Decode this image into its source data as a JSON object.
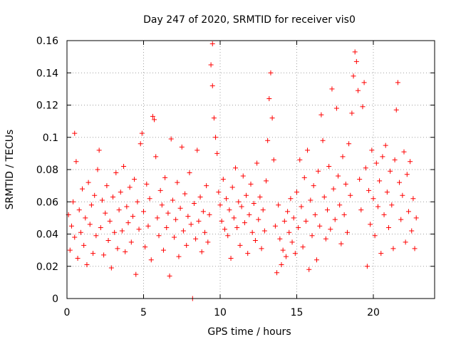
{
  "chart_data": {
    "type": "scatter",
    "title": "Day 247 of 2020, SRMTID for receiver vis0",
    "xlabel": "GPS time / hours",
    "ylabel": "SRMTID / TECUs",
    "xlim": [
      0,
      24
    ],
    "ylim": [
      0,
      0.16
    ],
    "x_ticks": [
      0,
      5,
      10,
      15,
      20
    ],
    "x_tick_labels": [
      "0",
      "5",
      "10",
      "15",
      "20"
    ],
    "y_ticks": [
      0,
      0.02,
      0.04,
      0.06,
      0.08,
      0.1,
      0.12,
      0.14,
      0.16
    ],
    "y_tick_labels": [
      "0",
      "0.02",
      "0.04",
      "0.06",
      "0.08",
      "0.1",
      "0.12",
      "0.14",
      "0.16"
    ],
    "grid": true,
    "marker": "plus",
    "color": "#ff0000",
    "series": [
      {
        "name": "vis0",
        "points": [
          [
            0.1,
            0.052
          ],
          [
            0.2,
            0.03
          ],
          [
            0.3,
            0.045
          ],
          [
            0.4,
            0.06
          ],
          [
            0.5,
            0.1025
          ],
          [
            0.5,
            0.038
          ],
          [
            0.6,
            0.085
          ],
          [
            0.7,
            0.025
          ],
          [
            0.8,
            0.055
          ],
          [
            0.9,
            0.041
          ],
          [
            1.0,
            0.068
          ],
          [
            1.1,
            0.033
          ],
          [
            1.2,
            0.05
          ],
          [
            1.3,
            0.021
          ],
          [
            1.4,
            0.072
          ],
          [
            1.5,
            0.046
          ],
          [
            1.6,
            0.058
          ],
          [
            1.7,
            0.028
          ],
          [
            1.8,
            0.064
          ],
          [
            1.9,
            0.039
          ],
          [
            2.0,
            0.08
          ],
          [
            2.1,
            0.092
          ],
          [
            2.2,
            0.044
          ],
          [
            2.3,
            0.061
          ],
          [
            2.4,
            0.027
          ],
          [
            2.5,
            0.053
          ],
          [
            2.6,
            0.07
          ],
          [
            2.7,
            0.036
          ],
          [
            2.8,
            0.048
          ],
          [
            2.9,
            0.019
          ],
          [
            3.0,
            0.063
          ],
          [
            3.1,
            0.041
          ],
          [
            3.2,
            0.078
          ],
          [
            3.3,
            0.031
          ],
          [
            3.4,
            0.055
          ],
          [
            3.5,
            0.066
          ],
          [
            3.6,
            0.042
          ],
          [
            3.7,
            0.082
          ],
          [
            3.8,
            0.029
          ],
          [
            3.9,
            0.057
          ],
          [
            4.0,
            0.047
          ],
          [
            4.1,
            0.069
          ],
          [
            4.2,
            0.035
          ],
          [
            4.3,
            0.051
          ],
          [
            4.4,
            0.074
          ],
          [
            4.5,
            0.015
          ],
          [
            4.6,
            0.06
          ],
          [
            4.7,
            0.043
          ],
          [
            4.8,
            0.096
          ],
          [
            4.9,
            0.1025
          ],
          [
            5.0,
            0.054
          ],
          [
            5.1,
            0.032
          ],
          [
            5.2,
            0.071
          ],
          [
            5.3,
            0.045
          ],
          [
            5.4,
            0.062
          ],
          [
            5.5,
            0.024
          ],
          [
            5.6,
            0.113
          ],
          [
            5.7,
            0.111
          ],
          [
            5.8,
            0.088
          ],
          [
            5.9,
            0.05
          ],
          [
            6.0,
            0.039
          ],
          [
            6.1,
            0.067
          ],
          [
            6.2,
            0.058
          ],
          [
            6.3,
            0.03
          ],
          [
            6.4,
            0.075
          ],
          [
            6.5,
            0.044
          ],
          [
            6.6,
            0.053
          ],
          [
            6.7,
            0.014
          ],
          [
            6.8,
            0.099
          ],
          [
            6.9,
            0.061
          ],
          [
            7.0,
            0.038
          ],
          [
            7.1,
            0.049
          ],
          [
            7.2,
            0.072
          ],
          [
            7.3,
            0.026
          ],
          [
            7.4,
            0.056
          ],
          [
            7.5,
            0.094
          ],
          [
            7.6,
            0.042
          ],
          [
            7.7,
            0.065
          ],
          [
            7.8,
            0.033
          ],
          [
            7.9,
            0.051
          ],
          [
            8.0,
            0.078
          ],
          [
            8.1,
            0.046
          ],
          [
            8.2,
            0.0
          ],
          [
            8.3,
            0.059
          ],
          [
            8.4,
            0.037
          ],
          [
            8.5,
            0.092
          ],
          [
            8.6,
            0.048
          ],
          [
            8.7,
            0.063
          ],
          [
            8.8,
            0.029
          ],
          [
            8.9,
            0.054
          ],
          [
            9.0,
            0.041
          ],
          [
            9.1,
            0.07
          ],
          [
            9.2,
            0.035
          ],
          [
            9.3,
            0.052
          ],
          [
            9.4,
            0.145
          ],
          [
            9.5,
            0.158
          ],
          [
            9.5,
            0.132
          ],
          [
            9.6,
            0.112
          ],
          [
            9.7,
            0.1
          ],
          [
            9.8,
            0.09
          ],
          [
            9.9,
            0.066
          ],
          [
            10.0,
            0.058
          ],
          [
            10.1,
            0.048
          ],
          [
            10.2,
            0.074
          ],
          [
            10.3,
            0.043
          ],
          [
            10.4,
            0.062
          ],
          [
            10.5,
            0.039
          ],
          [
            10.6,
            0.055
          ],
          [
            10.7,
            0.025
          ],
          [
            10.8,
            0.069
          ],
          [
            10.9,
            0.05
          ],
          [
            11.0,
            0.081
          ],
          [
            11.1,
            0.044
          ],
          [
            11.2,
            0.06
          ],
          [
            11.3,
            0.033
          ],
          [
            11.4,
            0.057
          ],
          [
            11.5,
            0.076
          ],
          [
            11.6,
            0.047
          ],
          [
            11.7,
            0.064
          ],
          [
            11.8,
            0.028
          ],
          [
            11.9,
            0.052
          ],
          [
            12.0,
            0.071
          ],
          [
            12.1,
            0.041
          ],
          [
            12.2,
            0.059
          ],
          [
            12.3,
            0.036
          ],
          [
            12.4,
            0.084
          ],
          [
            12.5,
            0.049
          ],
          [
            12.6,
            0.063
          ],
          [
            12.7,
            0.031
          ],
          [
            12.8,
            0.055
          ],
          [
            12.9,
            0.042
          ],
          [
            13.0,
            0.073
          ],
          [
            13.1,
            0.098
          ],
          [
            13.2,
            0.124
          ],
          [
            13.3,
            0.14
          ],
          [
            13.4,
            0.112
          ],
          [
            13.5,
            0.086
          ],
          [
            13.6,
            0.045
          ],
          [
            13.7,
            0.016
          ],
          [
            13.8,
            0.058
          ],
          [
            13.9,
            0.037
          ],
          [
            14.0,
            0.021
          ],
          [
            14.1,
            0.03
          ],
          [
            14.2,
            0.048
          ],
          [
            14.3,
            0.026
          ],
          [
            14.4,
            0.054
          ],
          [
            14.5,
            0.041
          ],
          [
            14.6,
            0.062
          ],
          [
            14.7,
            0.035
          ],
          [
            14.8,
            0.05
          ],
          [
            14.9,
            0.028
          ],
          [
            15.0,
            0.066
          ],
          [
            15.1,
            0.044
          ],
          [
            15.2,
            0.086
          ],
          [
            15.3,
            0.057
          ],
          [
            15.4,
            0.032
          ],
          [
            15.5,
            0.075
          ],
          [
            15.6,
            0.048
          ],
          [
            15.7,
            0.092
          ],
          [
            15.8,
            0.018
          ],
          [
            15.9,
            0.061
          ],
          [
            16.0,
            0.039
          ],
          [
            16.1,
            0.07
          ],
          [
            16.2,
            0.052
          ],
          [
            16.3,
            0.024
          ],
          [
            16.4,
            0.079
          ],
          [
            16.5,
            0.045
          ],
          [
            16.6,
            0.114
          ],
          [
            16.7,
            0.098
          ],
          [
            16.8,
            0.063
          ],
          [
            16.9,
            0.037
          ],
          [
            17.0,
            0.055
          ],
          [
            17.1,
            0.082
          ],
          [
            17.2,
            0.043
          ],
          [
            17.3,
            0.13
          ],
          [
            17.4,
            0.068
          ],
          [
            17.5,
            0.049
          ],
          [
            17.6,
            0.118
          ],
          [
            17.7,
            0.076
          ],
          [
            17.8,
            0.058
          ],
          [
            17.9,
            0.034
          ],
          [
            18.0,
            0.088
          ],
          [
            18.1,
            0.052
          ],
          [
            18.2,
            0.071
          ],
          [
            18.3,
            0.041
          ],
          [
            18.4,
            0.096
          ],
          [
            18.5,
            0.064
          ],
          [
            18.6,
            0.115
          ],
          [
            18.7,
            0.138
          ],
          [
            18.8,
            0.153
          ],
          [
            18.9,
            0.147
          ],
          [
            19.0,
            0.129
          ],
          [
            19.1,
            0.074
          ],
          [
            19.2,
            0.055
          ],
          [
            19.3,
            0.119
          ],
          [
            19.4,
            0.134
          ],
          [
            19.5,
            0.081
          ],
          [
            19.6,
            0.02
          ],
          [
            19.7,
            0.067
          ],
          [
            19.8,
            0.046
          ],
          [
            19.9,
            0.092
          ],
          [
            20.0,
            0.062
          ],
          [
            20.1,
            0.039
          ],
          [
            20.2,
            0.084
          ],
          [
            20.3,
            0.057
          ],
          [
            20.4,
            0.073
          ],
          [
            20.5,
            0.028
          ],
          [
            20.6,
            0.088
          ],
          [
            20.7,
            0.052
          ],
          [
            20.8,
            0.095
          ],
          [
            20.9,
            0.066
          ],
          [
            21.0,
            0.044
          ],
          [
            21.1,
            0.079
          ],
          [
            21.2,
            0.058
          ],
          [
            21.3,
            0.031
          ],
          [
            21.4,
            0.086
          ],
          [
            21.5,
            0.117
          ],
          [
            21.6,
            0.134
          ],
          [
            21.7,
            0.072
          ],
          [
            21.8,
            0.049
          ],
          [
            21.9,
            0.064
          ],
          [
            22.0,
            0.091
          ],
          [
            22.1,
            0.035
          ],
          [
            22.2,
            0.077
          ],
          [
            22.3,
            0.054
          ],
          [
            22.4,
            0.085
          ],
          [
            22.5,
            0.042
          ],
          [
            22.6,
            0.062
          ],
          [
            22.7,
            0.031
          ],
          [
            22.8,
            0.05
          ]
        ]
      }
    ]
  }
}
